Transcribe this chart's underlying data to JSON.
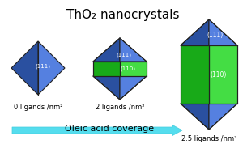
{
  "title": "ThO₂ nanocrystals",
  "title_fontsize": 11,
  "blue_color": "#4169C8",
  "blue_face": "#5580E0",
  "blue_dark": "#2A50A0",
  "green_color": "#22CC22",
  "green_face": "#44DD44",
  "green_dark": "#18AA18",
  "edge_color": "#222222",
  "labels": [
    "0 ligands /nm²",
    "2 ligands /nm²",
    "2.5 ligands /nm²"
  ],
  "face_labels_111": [
    "(111)",
    "(111)",
    "(111)"
  ],
  "face_labels_110": [
    "(110)",
    "(110)"
  ],
  "arrow_label": "Oleic acid coverage",
  "background": "#FFFFFF",
  "arrow_color_left": "#AAEEFF",
  "arrow_color_right": "#00CCDD"
}
